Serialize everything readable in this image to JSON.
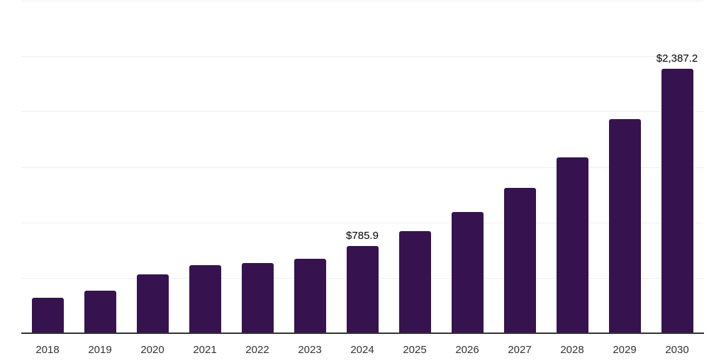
{
  "chart_data": {
    "type": "bar",
    "title": "",
    "xlabel": "",
    "ylabel": "",
    "categories": [
      "2018",
      "2019",
      "2020",
      "2021",
      "2022",
      "2023",
      "2024",
      "2025",
      "2026",
      "2027",
      "2028",
      "2029",
      "2030"
    ],
    "values": [
      320,
      384,
      531,
      614,
      633,
      672,
      785.9,
      921,
      1094,
      1311,
      1586,
      1932,
      2387.2
    ],
    "data_labels": [
      {
        "category": "2024",
        "text": "$785.9"
      },
      {
        "category": "2030",
        "text": "$2,387.2"
      }
    ],
    "ylim": [
      0,
      3000
    ],
    "gridline_step": 500,
    "grid": "horizontal",
    "legend": "none",
    "y_tick_labels_visible": false,
    "colors": {
      "bar": "#36134f",
      "gridline": "#efefef",
      "axis_line": "#333333",
      "data_label_text": "#000000",
      "tick_label_text": "#333333",
      "background": "#ffffff"
    }
  }
}
